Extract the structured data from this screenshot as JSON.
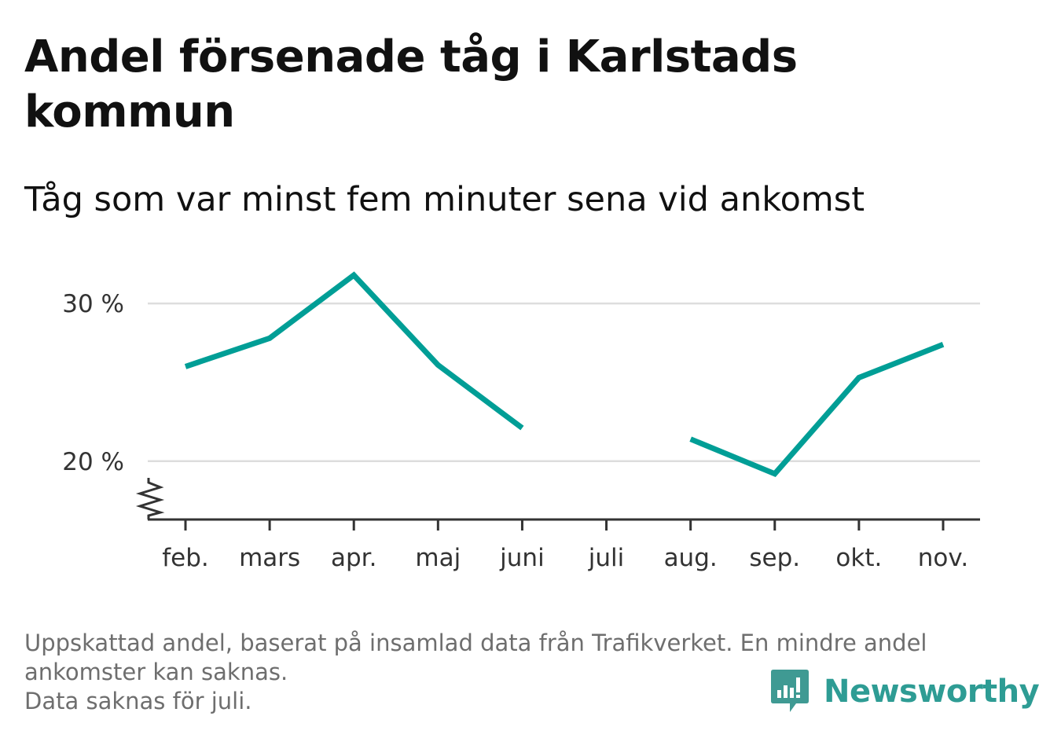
{
  "title": "Andel försenade tåg i Karlstads kommun",
  "subtitle": "Tåg som var minst fem minuter sena vid ankomst",
  "footnote": {
    "line1": "Uppskattad andel, baserat på insamlad data från Trafikverket. En mindre andel ankomster kan saknas.",
    "line2": "Data saknas för juli."
  },
  "brand": {
    "name": "Newsworthy",
    "color": "#2e9c94"
  },
  "chart_data": {
    "type": "line",
    "categories": [
      "feb.",
      "mars",
      "apr.",
      "maj",
      "juni",
      "juli",
      "aug.",
      "sep.",
      "okt.",
      "nov."
    ],
    "values": [
      26.0,
      27.8,
      31.8,
      26.1,
      22.1,
      null,
      21.4,
      19.2,
      25.3,
      27.4
    ],
    "ylim": [
      16.3,
      32.8
    ],
    "yticks": [
      20,
      30
    ],
    "ytick_labels": [
      "20 %",
      "30 %"
    ],
    "y_axis_break": true,
    "grid": true,
    "line_color": "#009e96",
    "grid_color": "#dddddd",
    "axis_color": "#333333"
  }
}
